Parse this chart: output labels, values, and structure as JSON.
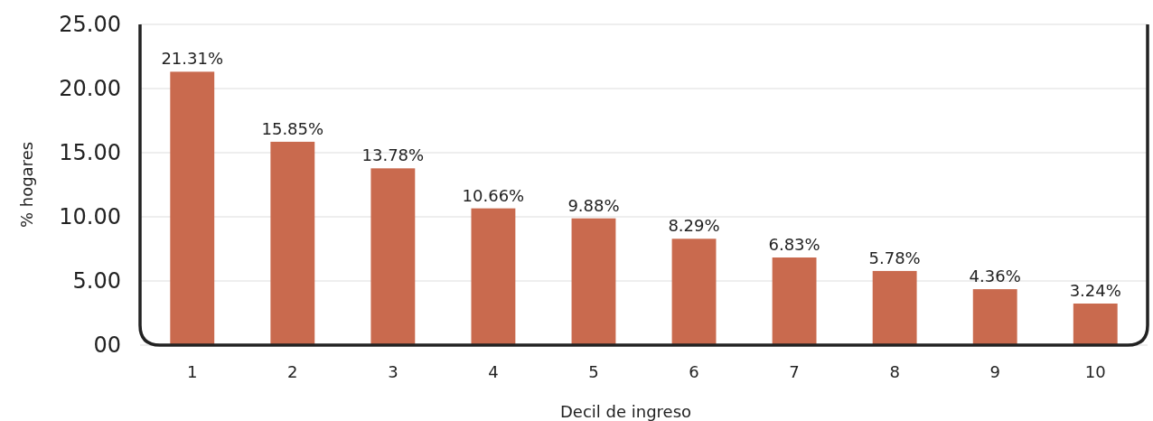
{
  "chart_data": {
    "type": "bar",
    "xlabel": "Decil de ingreso",
    "ylabel": "% hogares",
    "categories": [
      "1",
      "2",
      "3",
      "4",
      "5",
      "6",
      "7",
      "8",
      "9",
      "10"
    ],
    "values": [
      21.31,
      15.85,
      13.78,
      10.66,
      9.88,
      8.29,
      6.83,
      5.78,
      4.36,
      3.24
    ],
    "value_labels": [
      "21.31%",
      "15.85%",
      "13.78%",
      "10.66%",
      "9.88%",
      "8.29%",
      "6.83%",
      "5.78%",
      "4.36%",
      "3.24%"
    ],
    "color": "#c96a4e",
    "ylim": [
      0,
      25
    ],
    "yticks": [
      {
        "value": 0,
        "label": "00"
      },
      {
        "value": 5,
        "label": "5.00"
      },
      {
        "value": 10,
        "label": "10.00"
      },
      {
        "value": 15,
        "label": "15.00"
      },
      {
        "value": 20,
        "label": "20.00"
      },
      {
        "value": 25,
        "label": "25.00"
      }
    ],
    "grid": "y"
  }
}
